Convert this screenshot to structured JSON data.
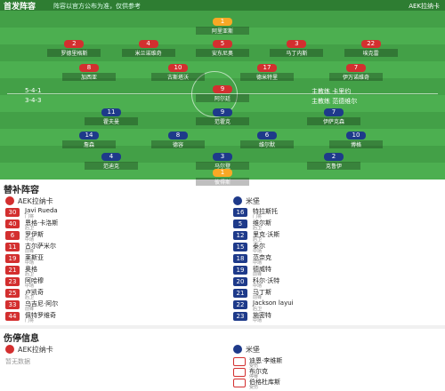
{
  "header": {
    "title": "首发阵容",
    "note": "阵容以官方公布为准，仅供参考",
    "badge": "AEK拉纳卡"
  },
  "field": {
    "home": {
      "formation": "5-4-1",
      "coach": "主教练 卡里约",
      "lines": [
        [
          {
            "no": "1",
            "name": "阿里亚斯"
          }
        ],
        [
          {
            "no": "2",
            "name": "罗德里格斯"
          },
          {
            "no": "4",
            "name": "米兰诺维奇"
          },
          {
            "no": "5",
            "name": "安东尼奥"
          },
          {
            "no": "3",
            "name": "马丁内斯"
          },
          {
            "no": "22",
            "name": "埃克雷"
          }
        ],
        [
          {
            "no": "8",
            "name": "加西亚"
          },
          {
            "no": "10",
            "name": "古斯塔沃"
          },
          {
            "no": "17",
            "name": "德米特里"
          },
          {
            "no": "7",
            "name": "伊万诺维奇"
          }
        ],
        [
          {
            "no": "9",
            "name": "阿尔廷"
          }
        ]
      ]
    },
    "away": {
      "formation": "3-4-3",
      "coach": "主教练 范德维尔",
      "lines": [
        [
          {
            "no": "11",
            "name": "霍夫曼"
          },
          {
            "no": "9",
            "name": "范霍克"
          },
          {
            "no": "7",
            "name": "伊萨克森"
          }
        ],
        [
          {
            "no": "14",
            "name": "詹森"
          },
          {
            "no": "8",
            "name": "德容"
          },
          {
            "no": "6",
            "name": "维尔默"
          },
          {
            "no": "10",
            "name": "博格"
          }
        ],
        [
          {
            "no": "4",
            "name": "范迪克"
          },
          {
            "no": "3",
            "name": "马尔登"
          },
          {
            "no": "2",
            "name": "克鲁伊"
          }
        ],
        [
          {
            "no": "1",
            "name": "彼得斯"
          }
        ]
      ]
    }
  },
  "subs": {
    "title": "替补阵容",
    "home": {
      "team": "AEK拉纳卡",
      "players": [
        {
          "no": "30",
          "name": "Javi Rueda",
          "pos": "门将"
        },
        {
          "no": "40",
          "name": "恩格·卡洛斯",
          "pos": "后卫"
        },
        {
          "no": "6",
          "name": "罗伊斯",
          "pos": "中场"
        },
        {
          "no": "11",
          "name": "古尔萨米尔",
          "pos": "前锋"
        },
        {
          "no": "19",
          "name": "莱斯亚",
          "pos": "中场"
        },
        {
          "no": "21",
          "name": "奥格",
          "pos": "后卫"
        },
        {
          "no": "23",
          "name": "阿哈穆",
          "pos": "中场"
        },
        {
          "no": "25",
          "name": "卢凯奇",
          "pos": "后卫"
        },
        {
          "no": "33",
          "name": "乌吉尼·阿尔",
          "pos": "前锋"
        },
        {
          "no": "44",
          "name": "佩特罗维奇",
          "pos": "门将"
        }
      ]
    },
    "away": {
      "team": "米堡",
      "players": [
        {
          "no": "16",
          "name": "特拉斯托",
          "pos": "门将"
        },
        {
          "no": "5",
          "name": "维尔斯",
          "pos": "后卫"
        },
        {
          "no": "12",
          "name": "里克·沃斯",
          "pos": "后卫"
        },
        {
          "no": "15",
          "name": "泰尔",
          "pos": "中场"
        },
        {
          "no": "18",
          "name": "范奈克",
          "pos": "中场"
        },
        {
          "no": "19",
          "name": "德威特",
          "pos": "前锋"
        },
        {
          "no": "20",
          "name": "科尔·沃特",
          "pos": "中场"
        },
        {
          "no": "21",
          "name": "马丁斯",
          "pos": "前锋"
        },
        {
          "no": "22",
          "name": "Jackson layui",
          "pos": "后卫"
        },
        {
          "no": "23",
          "name": "施密特",
          "pos": "中场"
        }
      ]
    }
  },
  "injuries": {
    "title": "伤停信息",
    "home": {
      "team": "AEK拉纳卡",
      "empty": "暂无数据"
    },
    "away": {
      "team": "米堡",
      "players": [
        {
          "name": "迪恩·李维斯",
          "reason": "受伤"
        },
        {
          "name": "布尔克",
          "reason": "停赛"
        },
        {
          "name": "伯格杜库斯",
          "reason": "受伤"
        }
      ]
    }
  }
}
